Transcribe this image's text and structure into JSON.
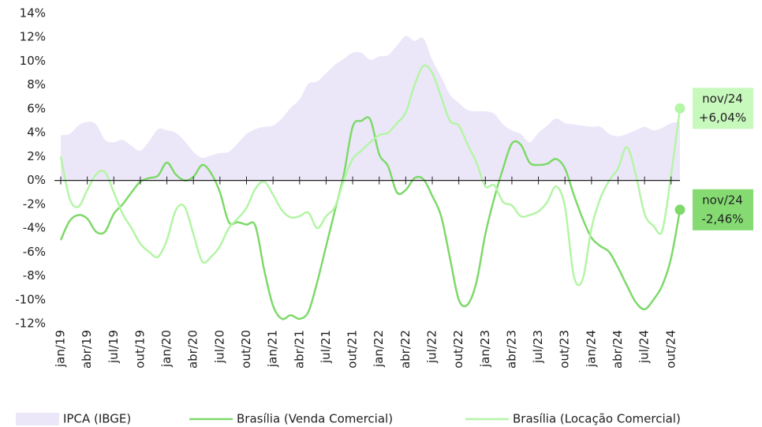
{
  "chart_data": {
    "type": "line",
    "categories": [
      "jan/19",
      null,
      null,
      "abr/19",
      null,
      null,
      "jul/19",
      null,
      null,
      "out/19",
      null,
      null,
      "jan/20",
      null,
      null,
      "abr/20",
      null,
      null,
      "jul/20",
      null,
      null,
      "out/20",
      null,
      null,
      "jan/21",
      null,
      null,
      "abr/21",
      null,
      null,
      "jul/21",
      null,
      null,
      "out/21",
      null,
      null,
      "jan/22",
      null,
      null,
      "abr/22",
      null,
      null,
      "jul/22",
      null,
      null,
      "out/22",
      null,
      null,
      "jan/23",
      null,
      null,
      "abr/23",
      null,
      null,
      "jul/23",
      null,
      null,
      "out/23",
      null,
      null,
      "jan/24",
      null,
      null,
      "abr/24",
      null,
      null,
      "jul/24",
      null,
      null,
      "out/24",
      null
    ],
    "series": [
      {
        "name": "IPCA (IBGE)",
        "kind": "area",
        "color": "#ece7f8",
        "values": [
          3.8,
          3.9,
          4.6,
          4.9,
          4.7,
          3.4,
          3.2,
          3.4,
          2.9,
          2.5,
          3.3,
          4.3,
          4.2,
          4.0,
          3.3,
          2.4,
          1.9,
          2.1,
          2.3,
          2.4,
          3.1,
          3.9,
          4.3,
          4.5,
          4.6,
          5.2,
          6.1,
          6.8,
          8.1,
          8.3,
          9.0,
          9.7,
          10.2,
          10.7,
          10.7,
          10.1,
          10.4,
          10.5,
          11.3,
          12.1,
          11.7,
          11.9,
          10.1,
          8.7,
          7.2,
          6.5,
          5.9,
          5.8,
          5.8,
          5.6,
          4.7,
          4.2,
          3.9,
          3.2,
          4.0,
          4.6,
          5.2,
          4.8,
          4.7,
          4.6,
          4.5,
          4.5,
          3.9,
          3.7,
          3.9,
          4.2,
          4.5,
          4.2,
          4.4,
          4.8,
          4.9
        ]
      },
      {
        "name": "Brasília (Venda Comercial)",
        "kind": "line",
        "color": "#7ed96a",
        "values": [
          -5,
          -3.4,
          -2.9,
          -3.2,
          -4.3,
          -4.3,
          -2.8,
          -2,
          -1,
          -0.1,
          0.2,
          0.4,
          1.5,
          0.5,
          0,
          0.3,
          1.3,
          0.6,
          -1,
          -3.5,
          -3.5,
          -3.7,
          -3.8,
          -7.5,
          -10.5,
          -11.6,
          -11.3,
          -11.6,
          -11,
          -8.5,
          -5.5,
          -2.5,
          0.5,
          4.5,
          5,
          5.1,
          2.2,
          1.2,
          -1,
          -0.8,
          0.2,
          0.1,
          -1.3,
          -3,
          -6.5,
          -10,
          -10.4,
          -8.5,
          -4.5,
          -1.5,
          1,
          3.1,
          3,
          1.5,
          1.3,
          1.4,
          1.8,
          1,
          -1.2,
          -3.2,
          -4.8,
          -5.5,
          -6,
          -7.3,
          -8.8,
          -10.2,
          -10.8,
          -10,
          -8.8,
          -6.5,
          -2.46
        ],
        "end_label": [
          "nov/24",
          "-2,46%"
        ]
      },
      {
        "name": "Brasília (Locação Comercial)",
        "kind": "line",
        "color": "#b4f5a6",
        "values": [
          2,
          -1.5,
          -2.2,
          -0.8,
          0.5,
          0.7,
          -1,
          -2.8,
          -4,
          -5.3,
          -6,
          -6.4,
          -5,
          -2.5,
          -2.2,
          -4.5,
          -6.8,
          -6.4,
          -5.5,
          -4,
          -3.2,
          -2.3,
          -0.7,
          -0.1,
          -1.2,
          -2.5,
          -3.1,
          -3,
          -2.7,
          -4,
          -3,
          -2.2,
          0,
          1.8,
          2.5,
          3.2,
          3.8,
          4,
          4.8,
          5.7,
          8,
          9.6,
          9,
          7,
          5,
          4.6,
          3,
          1.5,
          -0.5,
          -0.4,
          -1.8,
          -2.1,
          -3,
          -2.9,
          -2.6,
          -1.8,
          -0.5,
          -2.2,
          -8,
          -8.3,
          -4,
          -1.5,
          0,
          1,
          2.8,
          0.5,
          -2.8,
          -3.8,
          -4.2,
          0.5,
          6.04
        ],
        "end_label": [
          "nov/24",
          "+6,04%"
        ]
      }
    ],
    "ylim": [
      -12,
      14
    ],
    "yticks": [
      {
        "value": -12,
        "label": "-12%"
      },
      {
        "value": -10,
        "label": "-10%"
      },
      {
        "value": -8,
        "label": "-8%"
      },
      {
        "value": -6,
        "label": "-6%"
      },
      {
        "value": -4,
        "label": "-4%"
      },
      {
        "value": -2,
        "label": "-2%"
      },
      {
        "value": 0,
        "label": "0%"
      },
      {
        "value": 2,
        "label": "2%"
      },
      {
        "value": 4,
        "label": "4%"
      },
      {
        "value": 6,
        "label": "6%"
      },
      {
        "value": 8,
        "label": "8%"
      },
      {
        "value": 10,
        "label": "10%"
      },
      {
        "value": 12,
        "label": "12%"
      },
      {
        "value": 14,
        "label": "14%"
      }
    ],
    "grid": false,
    "legend": "bottom"
  }
}
